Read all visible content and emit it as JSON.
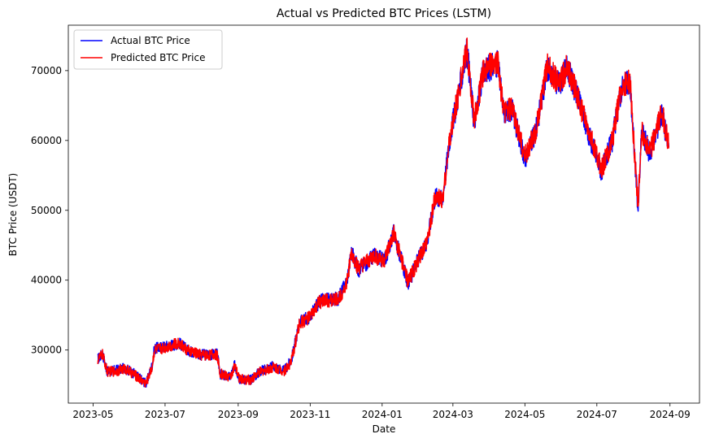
{
  "chart_data": {
    "type": "line",
    "title": "Actual vs Predicted BTC Prices (LSTM)",
    "xlabel": "Date",
    "ylabel": "BTC Price (USDT)",
    "xlim": [
      "2023-04-10",
      "2024-09-26"
    ],
    "ylim": [
      22400,
      76500
    ],
    "x_ticks": [
      "2023-05",
      "2023-07",
      "2023-09",
      "2023-11",
      "2024-01",
      "2024-03",
      "2024-05",
      "2024-07",
      "2024-09"
    ],
    "y_ticks": [
      30000,
      40000,
      50000,
      60000,
      70000
    ],
    "legend_position": "top-left",
    "grid": false,
    "series": [
      {
        "name": "Actual BTC Price",
        "color": "#0000ff",
        "points": [
          [
            "2023-05-05",
            28700
          ],
          [
            "2023-05-09",
            29500
          ],
          [
            "2023-05-13",
            26900
          ],
          [
            "2023-05-20",
            27100
          ],
          [
            "2023-05-28",
            27400
          ],
          [
            "2023-06-05",
            26600
          ],
          [
            "2023-06-10",
            25900
          ],
          [
            "2023-06-15",
            25200
          ],
          [
            "2023-06-20",
            27800
          ],
          [
            "2023-06-22",
            30200
          ],
          [
            "2023-07-01",
            30500
          ],
          [
            "2023-07-13",
            31000
          ],
          [
            "2023-07-20",
            30000
          ],
          [
            "2023-08-01",
            29300
          ],
          [
            "2023-08-14",
            29400
          ],
          [
            "2023-08-17",
            26500
          ],
          [
            "2023-08-25",
            26100
          ],
          [
            "2023-08-29",
            27800
          ],
          [
            "2023-09-02",
            25900
          ],
          [
            "2023-09-11",
            25700
          ],
          [
            "2023-09-20",
            27000
          ],
          [
            "2023-10-01",
            27700
          ],
          [
            "2023-10-10",
            27000
          ],
          [
            "2023-10-16",
            28500
          ],
          [
            "2023-10-23",
            34000
          ],
          [
            "2023-11-01",
            34800
          ],
          [
            "2023-11-09",
            37000
          ],
          [
            "2023-11-25",
            37400
          ],
          [
            "2023-12-02",
            39800
          ],
          [
            "2023-12-06",
            44000
          ],
          [
            "2023-12-12",
            41500
          ],
          [
            "2023-12-25",
            43500
          ],
          [
            "2024-01-03",
            42800
          ],
          [
            "2024-01-11",
            46800
          ],
          [
            "2024-01-23",
            39500
          ],
          [
            "2024-02-01",
            43100
          ],
          [
            "2024-02-08",
            45500
          ],
          [
            "2024-02-15",
            52000
          ],
          [
            "2024-02-21",
            51500
          ],
          [
            "2024-02-28",
            61000
          ],
          [
            "2024-03-05",
            66000
          ],
          [
            "2024-03-13",
            73000
          ],
          [
            "2024-03-19",
            62500
          ],
          [
            "2024-03-27",
            70000
          ],
          [
            "2024-04-08",
            71000
          ],
          [
            "2024-04-13",
            64000
          ],
          [
            "2024-04-20",
            64500
          ],
          [
            "2024-05-01",
            57500
          ],
          [
            "2024-05-10",
            61000
          ],
          [
            "2024-05-20",
            70500
          ],
          [
            "2024-05-30",
            68000
          ],
          [
            "2024-06-06",
            70500
          ],
          [
            "2024-06-15",
            66000
          ],
          [
            "2024-06-24",
            61000
          ],
          [
            "2024-07-05",
            55500
          ],
          [
            "2024-07-14",
            60000
          ],
          [
            "2024-07-22",
            67500
          ],
          [
            "2024-07-29",
            68500
          ],
          [
            "2024-08-05",
            50000
          ],
          [
            "2024-08-08",
            61500
          ],
          [
            "2024-08-15",
            58000
          ],
          [
            "2024-08-25",
            64000
          ],
          [
            "2024-08-31",
            59000
          ]
        ]
      },
      {
        "name": "Predicted BTC Price",
        "color": "#ff0000",
        "points": [
          [
            "2023-05-05",
            28600
          ],
          [
            "2023-05-09",
            29400
          ],
          [
            "2023-05-13",
            26900
          ],
          [
            "2023-05-20",
            27000
          ],
          [
            "2023-05-28",
            27300
          ],
          [
            "2023-06-05",
            26500
          ],
          [
            "2023-06-10",
            25800
          ],
          [
            "2023-06-15",
            25200
          ],
          [
            "2023-06-20",
            27600
          ],
          [
            "2023-06-22",
            30000
          ],
          [
            "2023-07-01",
            30400
          ],
          [
            "2023-07-13",
            31000
          ],
          [
            "2023-07-20",
            29900
          ],
          [
            "2023-08-01",
            29300
          ],
          [
            "2023-08-14",
            29300
          ],
          [
            "2023-08-17",
            26600
          ],
          [
            "2023-08-25",
            26100
          ],
          [
            "2023-08-29",
            27600
          ],
          [
            "2023-09-02",
            25900
          ],
          [
            "2023-09-11",
            25700
          ],
          [
            "2023-09-20",
            26900
          ],
          [
            "2023-10-01",
            27600
          ],
          [
            "2023-10-10",
            27000
          ],
          [
            "2023-10-16",
            28300
          ],
          [
            "2023-10-23",
            33800
          ],
          [
            "2023-11-01",
            34700
          ],
          [
            "2023-11-09",
            36900
          ],
          [
            "2023-11-25",
            37300
          ],
          [
            "2023-12-02",
            39600
          ],
          [
            "2023-12-06",
            43800
          ],
          [
            "2023-12-12",
            41600
          ],
          [
            "2023-12-25",
            43400
          ],
          [
            "2024-01-03",
            42800
          ],
          [
            "2024-01-11",
            46600
          ],
          [
            "2024-01-23",
            39700
          ],
          [
            "2024-02-01",
            43000
          ],
          [
            "2024-02-08",
            45400
          ],
          [
            "2024-02-15",
            51800
          ],
          [
            "2024-02-21",
            51500
          ],
          [
            "2024-02-28",
            60800
          ],
          [
            "2024-03-05",
            66200
          ],
          [
            "2024-03-13",
            73200
          ],
          [
            "2024-03-19",
            62800
          ],
          [
            "2024-03-27",
            70100
          ],
          [
            "2024-04-08",
            71200
          ],
          [
            "2024-04-13",
            64200
          ],
          [
            "2024-04-20",
            64600
          ],
          [
            "2024-05-01",
            57800
          ],
          [
            "2024-05-10",
            61100
          ],
          [
            "2024-05-20",
            70600
          ],
          [
            "2024-05-30",
            68100
          ],
          [
            "2024-06-06",
            70600
          ],
          [
            "2024-06-15",
            66200
          ],
          [
            "2024-06-24",
            61200
          ],
          [
            "2024-07-05",
            55800
          ],
          [
            "2024-07-14",
            60100
          ],
          [
            "2024-07-22",
            67600
          ],
          [
            "2024-07-29",
            68600
          ],
          [
            "2024-08-05",
            50500
          ],
          [
            "2024-08-08",
            61400
          ],
          [
            "2024-08-15",
            58200
          ],
          [
            "2024-08-25",
            64100
          ],
          [
            "2024-08-31",
            59200
          ]
        ]
      }
    ]
  }
}
